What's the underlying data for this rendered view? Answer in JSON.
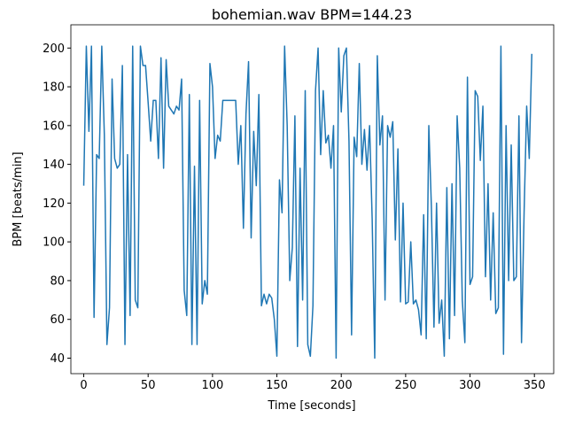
{
  "chart_data": {
    "type": "line",
    "title": "bohemian.wav BPM=144.23",
    "x_label": "Time [seconds]",
    "y_label": "BPM [beats/min]",
    "color": "#1f77b4",
    "x": [
      0,
      2,
      4,
      6,
      8,
      10,
      12,
      14,
      16,
      18,
      20,
      22,
      24,
      26,
      28,
      30,
      32,
      34,
      36,
      38,
      40,
      42,
      44,
      46,
      48,
      50,
      52,
      54,
      56,
      58,
      60,
      62,
      64,
      66,
      68,
      70,
      72,
      74,
      76,
      78,
      80,
      82,
      84,
      86,
      88,
      90,
      92,
      94,
      96,
      98,
      100,
      102,
      104,
      106,
      108,
      110,
      112,
      114,
      116,
      118,
      120,
      122,
      124,
      126,
      128,
      130,
      132,
      134,
      136,
      138,
      140,
      142,
      144,
      146,
      148,
      150,
      152,
      154,
      156,
      158,
      160,
      162,
      164,
      166,
      168,
      170,
      172,
      174,
      176,
      178,
      180,
      182,
      184,
      186,
      188,
      190,
      192,
      194,
      196,
      198,
      200,
      202,
      204,
      206,
      208,
      210,
      212,
      214,
      216,
      218,
      220,
      222,
      224,
      226,
      228,
      230,
      232,
      234,
      236,
      238,
      240,
      242,
      244,
      246,
      248,
      250,
      252,
      254,
      256,
      258,
      260,
      262,
      264,
      266,
      268,
      270,
      272,
      274,
      276,
      278,
      280,
      282,
      284,
      286,
      288,
      290,
      292,
      294,
      296,
      298,
      300,
      302,
      304,
      306,
      308,
      310,
      312,
      314,
      316,
      318,
      320,
      322,
      324,
      326,
      328,
      330,
      332,
      334,
      336,
      338,
      340,
      342,
      344,
      346,
      348
    ],
    "values": [
      129,
      201,
      157,
      201,
      61,
      145,
      143,
      201,
      155,
      47,
      66,
      184,
      143,
      138,
      140,
      191,
      47,
      145,
      62,
      201,
      70,
      66,
      201,
      191,
      191,
      172,
      152,
      173,
      173,
      143,
      195,
      138,
      194,
      170,
      168,
      166,
      170,
      168,
      184,
      75,
      62,
      176,
      47,
      139,
      47,
      173,
      68,
      80,
      73,
      192,
      180,
      143,
      155,
      152,
      173,
      173,
      173,
      173,
      173,
      173,
      140,
      160,
      107,
      166,
      193,
      102,
      157,
      129,
      176,
      67,
      73,
      68,
      73,
      71,
      60,
      41,
      132,
      115,
      201,
      160,
      80,
      97,
      165,
      46,
      138,
      70,
      178,
      47,
      41,
      67,
      178,
      200,
      145,
      178,
      151,
      155,
      138,
      160,
      40,
      200,
      167,
      196,
      200,
      152,
      52,
      154,
      144,
      192,
      140,
      158,
      137,
      160,
      112,
      40,
      196,
      150,
      165,
      70,
      160,
      154,
      162,
      101,
      148,
      69,
      120,
      68,
      69,
      100,
      68,
      70,
      65,
      52,
      114,
      50,
      160,
      118,
      56,
      120,
      58,
      70,
      41,
      128,
      50,
      130,
      62,
      165,
      138,
      70,
      48,
      185,
      78,
      82,
      178,
      175,
      142,
      170,
      82,
      130,
      70,
      115,
      63,
      66,
      201,
      42,
      160,
      80,
      150,
      80,
      82,
      165,
      48,
      115,
      170,
      143,
      197
    ],
    "xlim": [
      -10,
      365
    ],
    "ylim": [
      32,
      212
    ],
    "xticks": [
      0,
      50,
      100,
      150,
      200,
      250,
      300,
      350
    ],
    "yticks": [
      40,
      60,
      80,
      100,
      120,
      140,
      160,
      180,
      200
    ]
  }
}
